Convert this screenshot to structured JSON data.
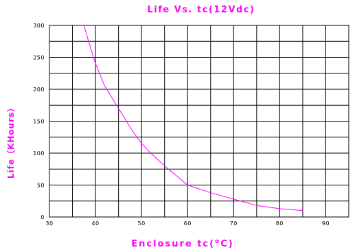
{
  "chart_data": {
    "type": "line",
    "title": "Life Vs. tc(12Vdc)",
    "xlabel": "Enclosure tc(oC)",
    "xlabel_parts": {
      "pre": "Enclosure tc(",
      "sup": "o",
      "post": "C)"
    },
    "ylabel": "Life（KHours）",
    "xlim": [
      30,
      95
    ],
    "ylim": [
      0,
      300
    ],
    "x_major_ticks": [
      30,
      40,
      50,
      60,
      70,
      80,
      90
    ],
    "x_grid_step": 5,
    "y_ticks": [
      0,
      50,
      100,
      150,
      200,
      250,
      300
    ],
    "y_grid_step": 25,
    "grid": true,
    "series": [
      {
        "color": "#ff00ff",
        "x": [
          37.5,
          38.5,
          40,
          42,
          45,
          48,
          50,
          52,
          55,
          58,
          60,
          65,
          70,
          75,
          80,
          85
        ],
        "y": [
          300,
          275,
          240,
          205,
          170,
          135,
          115,
          100,
          80,
          62,
          50,
          38,
          28,
          18,
          13,
          10
        ]
      }
    ]
  }
}
